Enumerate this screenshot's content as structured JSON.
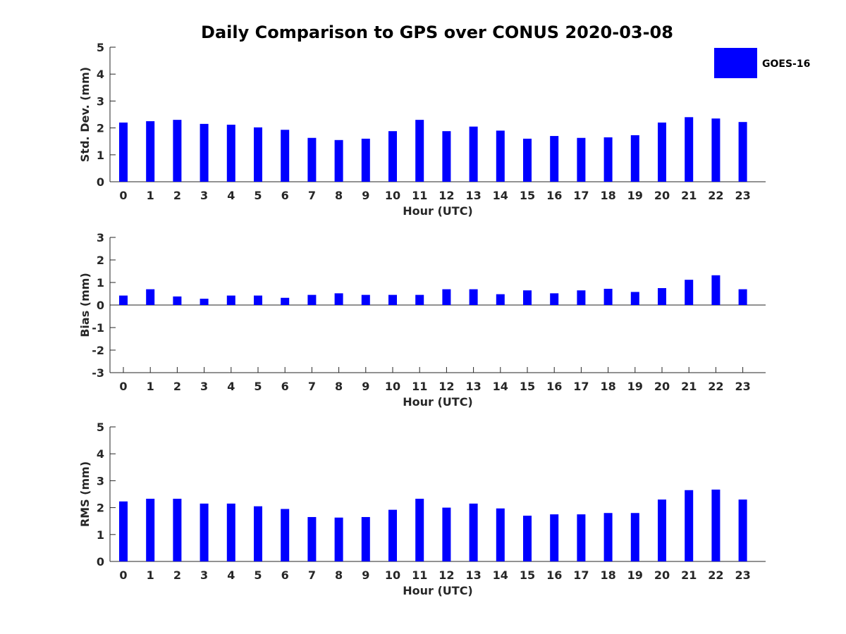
{
  "figure": {
    "title": "Daily Comparison to GPS over CONUS 2020-03-08"
  },
  "legend": {
    "label": "GOES-16",
    "color": "#0000ff",
    "placement": "top-right"
  },
  "chart_data": [
    {
      "type": "bar",
      "xlabel": "Hour (UTC)",
      "ylabel": "Std. Dev. (mm)",
      "categories": [
        "0",
        "1",
        "2",
        "3",
        "4",
        "5",
        "6",
        "7",
        "8",
        "9",
        "10",
        "11",
        "12",
        "13",
        "14",
        "15",
        "16",
        "17",
        "18",
        "19",
        "20",
        "21",
        "22",
        "23"
      ],
      "ylim": [
        0,
        5
      ],
      "yticks": [
        0,
        1,
        2,
        3,
        4,
        5
      ],
      "series": [
        {
          "name": "GOES-16",
          "color": "#0000ff",
          "values": [
            2.2,
            2.25,
            2.3,
            2.15,
            2.12,
            2.02,
            1.93,
            1.63,
            1.55,
            1.6,
            1.88,
            2.3,
            1.88,
            2.05,
            1.9,
            1.6,
            1.7,
            1.63,
            1.65,
            1.73,
            2.2,
            2.4,
            2.35,
            2.22
          ]
        }
      ],
      "grid": false
    },
    {
      "type": "bar",
      "xlabel": "Hour (UTC)",
      "ylabel": "Bias (mm)",
      "categories": [
        "0",
        "1",
        "2",
        "3",
        "4",
        "5",
        "6",
        "7",
        "8",
        "9",
        "10",
        "11",
        "12",
        "13",
        "14",
        "15",
        "16",
        "17",
        "18",
        "19",
        "20",
        "21",
        "22",
        "23"
      ],
      "ylim": [
        -3,
        3
      ],
      "yticks": [
        -3,
        -2,
        -1,
        0,
        1,
        2,
        3
      ],
      "zero_line": true,
      "series": [
        {
          "name": "GOES-16",
          "color": "#0000ff",
          "values": [
            0.42,
            0.7,
            0.38,
            0.28,
            0.42,
            0.42,
            0.32,
            0.45,
            0.52,
            0.45,
            0.45,
            0.45,
            0.7,
            0.7,
            0.48,
            0.65,
            0.52,
            0.65,
            0.72,
            0.58,
            0.75,
            1.12,
            1.32,
            0.7
          ]
        }
      ],
      "grid": false
    },
    {
      "type": "bar",
      "xlabel": "Hour (UTC)",
      "ylabel": "RMS (mm)",
      "categories": [
        "0",
        "1",
        "2",
        "3",
        "4",
        "5",
        "6",
        "7",
        "8",
        "9",
        "10",
        "11",
        "12",
        "13",
        "14",
        "15",
        "16",
        "17",
        "18",
        "19",
        "20",
        "21",
        "22",
        "23"
      ],
      "ylim": [
        0,
        5
      ],
      "yticks": [
        0,
        1,
        2,
        3,
        4,
        5
      ],
      "series": [
        {
          "name": "GOES-16",
          "color": "#0000ff",
          "values": [
            2.23,
            2.33,
            2.33,
            2.15,
            2.15,
            2.05,
            1.95,
            1.65,
            1.63,
            1.65,
            1.92,
            2.33,
            2.0,
            2.15,
            1.97,
            1.7,
            1.75,
            1.75,
            1.8,
            1.8,
            2.3,
            2.65,
            2.67,
            2.3
          ]
        }
      ],
      "grid": false
    }
  ]
}
